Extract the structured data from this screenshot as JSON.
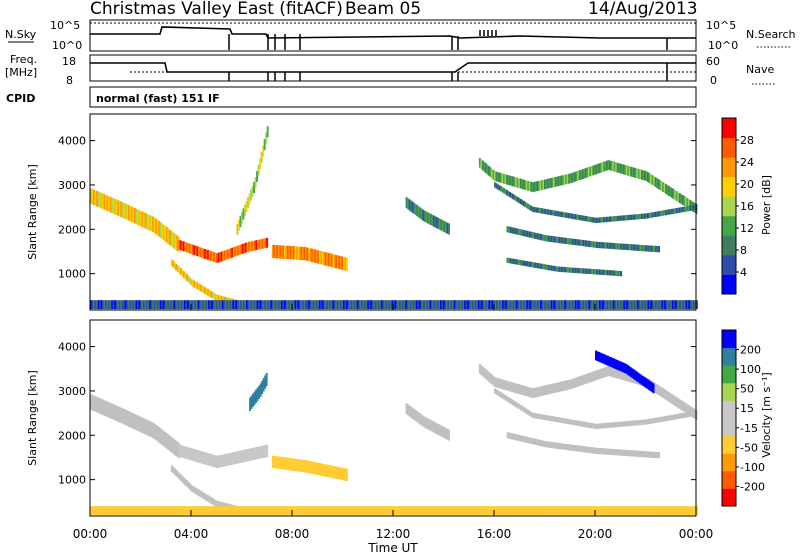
{
  "header": {
    "title": "Christmas Valley East (fitACF)",
    "beam": "Beam 05",
    "date": "14/Aug/2013"
  },
  "status_panels": {
    "nsky_label": "N.Sky",
    "nsky_ticks": [
      "10^5",
      "10^0"
    ],
    "nsearch_label": "N.Search",
    "nsearch_ticks": [
      "10^5",
      "10^0"
    ],
    "freq_label": "Freq.",
    "freq_unit": "[MHz]",
    "freq_ticks": [
      "18",
      "8"
    ],
    "nave_label": "Nave",
    "nave_ticks": [
      "60",
      "0"
    ],
    "cpid_label": "CPID",
    "cpid_value": "normal (fast) 151 IF"
  },
  "colors": {
    "power_scale": [
      "#0000ff",
      "#2b4fa8",
      "#3f7f5f",
      "#43a843",
      "#a8d44f",
      "#ffd000",
      "#ff9a00",
      "#ff5a00",
      "#ff0000"
    ],
    "velocity_scale": [
      "#ff0000",
      "#ff5a00",
      "#ff9a00",
      "#ffcc33",
      "#c8c8c8",
      "#c8c8c8",
      "#a8d44f",
      "#43a843",
      "#2f7f9f",
      "#0000ff"
    ],
    "ground_scatter": "#c0c0c0"
  },
  "chart_data": [
    {
      "type": "heatmap",
      "name": "power",
      "ylabel": "Slant Range [km]",
      "yticks": [
        "1000",
        "2000",
        "3000",
        "4000"
      ],
      "ylim": [
        180,
        4600
      ],
      "colorbar_label": "Power [dB]",
      "colorbar_ticks": [
        "4",
        "8",
        "12",
        "16",
        "20",
        "24",
        "28"
      ],
      "colorbar_range": [
        0,
        32
      ],
      "bands": [
        {
          "t": [
            0.0,
            1.2,
            2.5,
            3.5
          ],
          "r": [
            2750,
            2450,
            2100,
            1650
          ],
          "w": 350,
          "dB": 22
        },
        {
          "t": [
            3.5,
            5.0,
            6.2,
            7.0
          ],
          "r": [
            1650,
            1350,
            1600,
            1700
          ],
          "w": 220,
          "dB": 28
        },
        {
          "t": [
            7.2,
            8.5,
            10.2
          ],
          "r": [
            1500,
            1450,
            1200
          ],
          "w": 300,
          "dB": 26
        },
        {
          "t": [
            3.2,
            4.0,
            5.0,
            6.0
          ],
          "r": [
            1250,
            800,
            450,
            300
          ],
          "w": 150,
          "dB": 22
        },
        {
          "t": [
            5.8,
            6.5,
            7.0
          ],
          "r": [
            2000,
            3000,
            4200
          ],
          "w": 250,
          "dB": 18
        },
        {
          "t": [
            12.5,
            13.2,
            14.2
          ],
          "r": [
            2600,
            2300,
            2000
          ],
          "w": 250,
          "dB": 12
        },
        {
          "t": [
            15.4,
            16.0,
            17.5,
            19.0,
            20.5,
            22.0,
            24.0
          ],
          "r": [
            3500,
            3200,
            2950,
            3150,
            3450,
            3200,
            2450
          ],
          "w": 220,
          "dB": 14
        },
        {
          "t": [
            16.0,
            17.5,
            20.0,
            22.0,
            24.0
          ],
          "r": [
            3000,
            2450,
            2200,
            2300,
            2500
          ],
          "w": 120,
          "dB": 10
        },
        {
          "t": [
            16.5,
            18.0,
            20.0,
            22.5
          ],
          "r": [
            2000,
            1800,
            1650,
            1550
          ],
          "w": 140,
          "dB": 10
        },
        {
          "t": [
            16.5,
            18.5,
            21.0
          ],
          "r": [
            1300,
            1100,
            1000
          ],
          "w": 120,
          "dB": 10
        },
        {
          "t": [
            0.0,
            24.0
          ],
          "r": [
            300,
            300
          ],
          "w": 200,
          "dB": 8
        }
      ]
    },
    {
      "type": "heatmap",
      "name": "velocity",
      "ylabel": "Slant Range [km]",
      "yticks": [
        "1000",
        "2000",
        "3000",
        "4000"
      ],
      "ylim": [
        180,
        4600
      ],
      "xlabel": "Time UT",
      "xticks": [
        "00:00",
        "04:00",
        "08:00",
        "12:00",
        "16:00",
        "20:00",
        "00:00"
      ],
      "xlim": [
        0,
        24
      ],
      "colorbar_label": "Velocity [m s⁻¹]",
      "colorbar_ticks": [
        "200",
        "100",
        "50",
        "15",
        "-15",
        "-50",
        "-100",
        "-200"
      ],
      "colorbar_range": [
        -250,
        250
      ],
      "bands": [
        {
          "t": [
            0.0,
            1.2,
            2.5,
            3.5
          ],
          "r": [
            2750,
            2450,
            2100,
            1650
          ],
          "w": 350,
          "v": 0
        },
        {
          "t": [
            3.5,
            5.0,
            6.2,
            7.0
          ],
          "r": [
            1650,
            1400,
            1550,
            1650
          ],
          "w": 280,
          "v": 30
        },
        {
          "t": [
            7.2,
            8.5,
            10.2
          ],
          "r": [
            1400,
            1300,
            1100
          ],
          "w": 280,
          "v": -80
        },
        {
          "t": [
            3.2,
            4.0,
            5.0,
            6.0
          ],
          "r": [
            1250,
            800,
            450,
            300
          ],
          "w": 150,
          "v": 0
        },
        {
          "t": [
            6.3,
            6.7,
            7.0
          ],
          "r": [
            2700,
            3000,
            3300
          ],
          "w": 300,
          "v": 180
        },
        {
          "t": [
            12.5,
            13.2,
            14.2
          ],
          "r": [
            2600,
            2300,
            2000
          ],
          "w": 250,
          "v": 0
        },
        {
          "t": [
            15.4,
            16.0,
            17.5,
            19.0,
            20.5,
            22.0,
            24.0
          ],
          "r": [
            3500,
            3200,
            2950,
            3150,
            3450,
            3200,
            2450
          ],
          "w": 220,
          "v": 0
        },
        {
          "t": [
            20.0,
            21.2,
            22.3
          ],
          "r": [
            3800,
            3500,
            3050
          ],
          "w": 220,
          "v": 220
        },
        {
          "t": [
            16.0,
            17.5,
            20.0,
            22.0,
            24.0
          ],
          "r": [
            3000,
            2450,
            2200,
            2300,
            2500
          ],
          "w": 120,
          "v": 0
        },
        {
          "t": [
            16.5,
            18.0,
            20.0,
            22.5
          ],
          "r": [
            2000,
            1800,
            1650,
            1550
          ],
          "w": 140,
          "v": 0
        },
        {
          "t": [
            0.0,
            24.0
          ],
          "r": [
            300,
            300
          ],
          "w": 200,
          "v": -100
        }
      ]
    }
  ]
}
